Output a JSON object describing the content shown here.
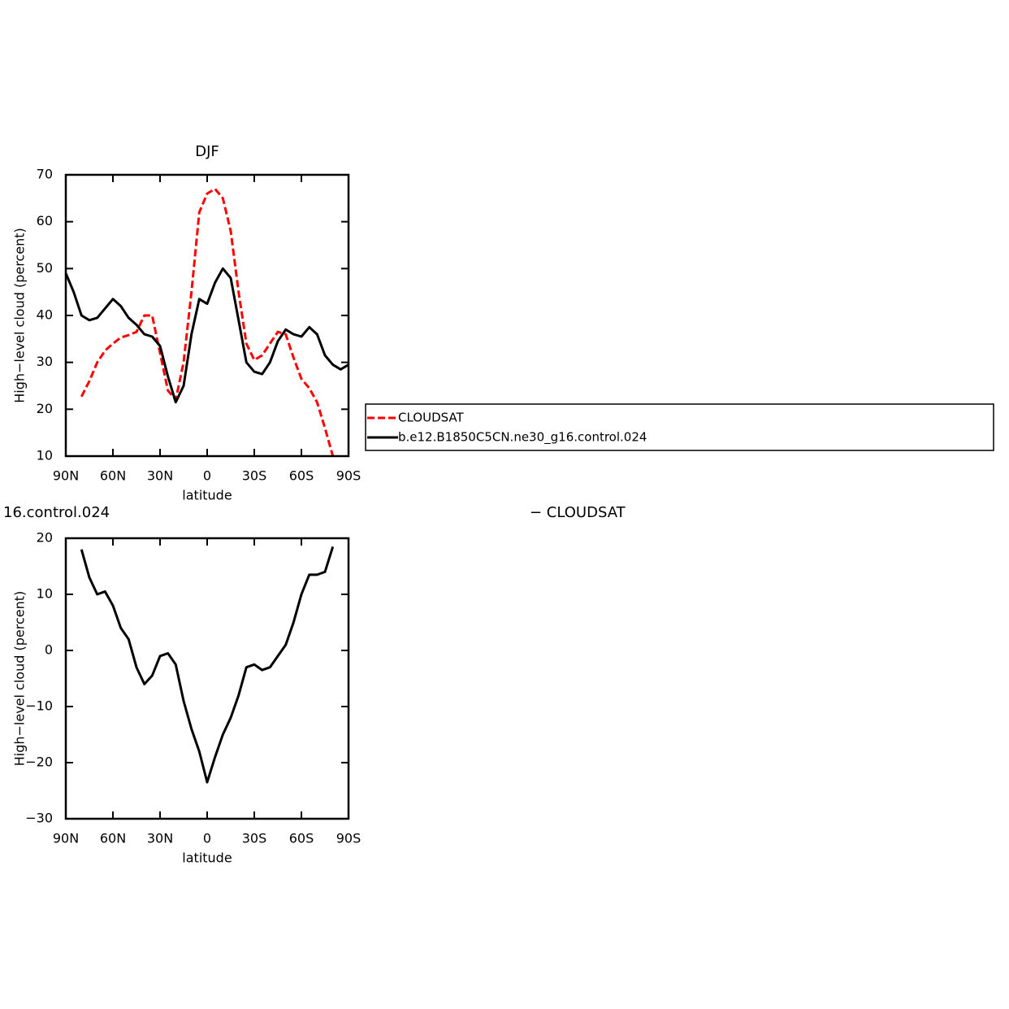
{
  "chart_data": [
    {
      "type": "line",
      "title": "DJF",
      "xlabel": "latitude",
      "ylabel": "High−level cloud (percent)",
      "x": [
        90,
        85,
        80,
        75,
        70,
        65,
        60,
        55,
        50,
        45,
        40,
        35,
        30,
        25,
        20,
        15,
        10,
        5,
        0,
        -5,
        -10,
        -15,
        -20,
        -25,
        -30,
        -35,
        -40,
        -45,
        -50,
        -55,
        -60,
        -65,
        -70,
        -75,
        -80,
        -85,
        -90
      ],
      "series": [
        {
          "name": "CLOUDSAT",
          "color": "#ff0000",
          "dashed": true,
          "values": [
            null,
            null,
            22.7,
            26,
            30,
            32.5,
            34,
            35.3,
            35.8,
            36.5,
            40,
            40,
            32,
            24,
            22,
            30,
            45,
            62,
            66,
            67,
            65,
            58,
            45,
            34,
            30.5,
            31.5,
            34,
            36.5,
            36,
            31,
            26.5,
            24.5,
            21.5,
            16,
            10,
            null,
            null
          ]
        },
        {
          "name": "b.e12.B1850C5CN.ne30_g16.control.024",
          "color": "#000000",
          "dashed": false,
          "values": [
            49,
            45,
            40,
            39,
            39.5,
            41.5,
            43.5,
            42,
            39.5,
            38,
            36,
            35.5,
            33.5,
            27,
            21.5,
            25,
            36,
            43.5,
            42.5,
            47,
            50,
            48,
            39,
            30,
            28,
            27.5,
            30,
            34.5,
            37,
            36,
            35.5,
            37.5,
            36,
            31.5,
            29.5,
            28.5,
            29.5
          ]
        }
      ],
      "xlim": [
        90,
        -90
      ],
      "xticks": [
        {
          "value": 90,
          "label": "90N"
        },
        {
          "value": 60,
          "label": "60N"
        },
        {
          "value": 30,
          "label": "30N"
        },
        0,
        {
          "value": -30,
          "label": "30S"
        },
        {
          "value": -60,
          "label": "60S"
        },
        {
          "value": -90,
          "label": "90S"
        }
      ],
      "ylim": [
        10,
        70
      ],
      "yticks": [
        10,
        20,
        30,
        40,
        50,
        60,
        70
      ]
    },
    {
      "type": "line",
      "title_left": "16.control.024",
      "title_right": "− CLOUDSAT",
      "xlabel": "latitude",
      "ylabel": "High−level cloud (percent)",
      "x": [
        80,
        75,
        70,
        65,
        60,
        55,
        50,
        45,
        40,
        35,
        30,
        25,
        20,
        15,
        10,
        5,
        0,
        -5,
        -10,
        -15,
        -20,
        -25,
        -30,
        -35,
        -40,
        -45,
        -50,
        -55,
        -60,
        -65,
        -70,
        -75,
        -80
      ],
      "series": [
        {
          "color": "#000000",
          "dashed": false,
          "values": [
            18,
            13,
            10,
            10.5,
            8,
            4,
            2,
            -3,
            -6,
            -4.5,
            -1,
            -0.5,
            -2.5,
            -9,
            -14,
            -18,
            -23.5,
            -19,
            -15,
            -12,
            -8,
            -3,
            -2.5,
            -3.5,
            -3,
            -1,
            1,
            5,
            10,
            13.5,
            13.5,
            14,
            18.5
          ]
        }
      ],
      "xlim": [
        90,
        -90
      ],
      "xticks": [
        {
          "value": 90,
          "label": "90N"
        },
        {
          "value": 60,
          "label": "60N"
        },
        {
          "value": 30,
          "label": "30N"
        },
        0,
        {
          "value": -30,
          "label": "30S"
        },
        {
          "value": -60,
          "label": "60S"
        },
        {
          "value": -90,
          "label": "90S"
        }
      ],
      "ylim": [
        -30,
        20
      ],
      "yticks": [
        {
          "value": -30,
          "label": "−30"
        },
        {
          "value": -20,
          "label": "−20"
        },
        {
          "value": -10,
          "label": "−10"
        },
        0,
        10,
        20
      ]
    }
  ]
}
